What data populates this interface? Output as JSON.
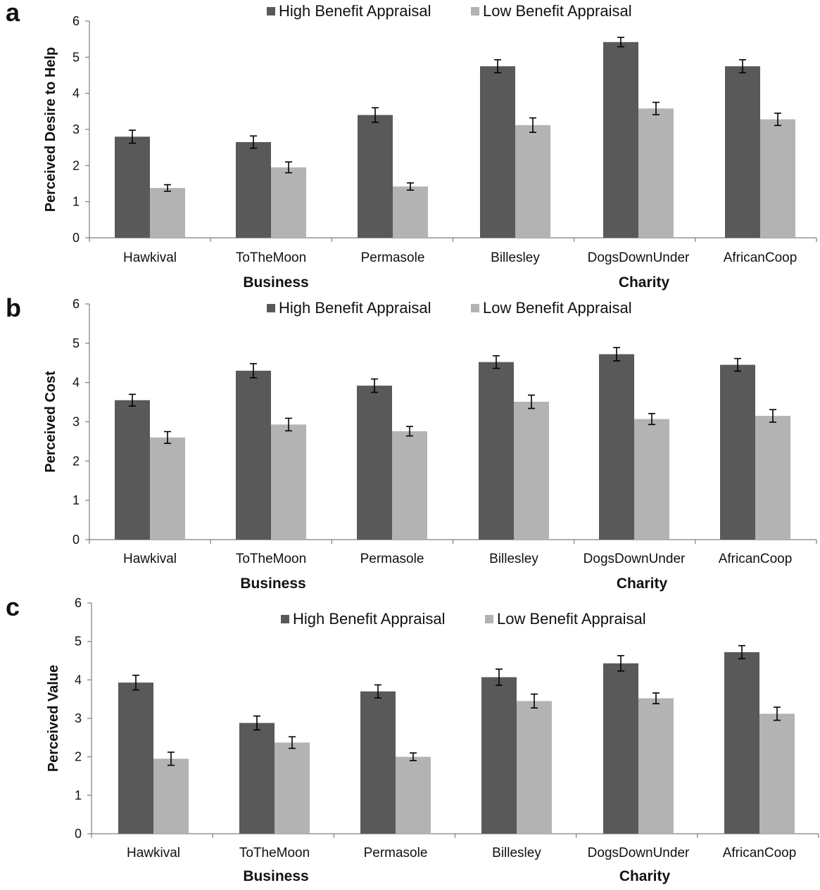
{
  "chart_data": [
    {
      "type": "bar",
      "panel_label": "a",
      "ylabel": "Perceived Desire to Help",
      "ylim": [
        0,
        6
      ],
      "yticks": [
        0,
        1,
        2,
        3,
        4,
        5,
        6
      ],
      "categories": [
        "Hawkival",
        "ToTheMoon",
        "Permasole",
        "Billesley",
        "DogsDownUnder",
        "AfricanCoop"
      ],
      "groups": [
        {
          "label": "Business",
          "categories": [
            "Hawkival",
            "ToTheMoon",
            "Permasole"
          ]
        },
        {
          "label": "Charity",
          "categories": [
            "Billesley",
            "DogsDownUnder",
            "AfricanCoop"
          ]
        }
      ],
      "legend_position": "top-center",
      "grid": false,
      "series": [
        {
          "name": "High Benefit Appraisal",
          "color": "#595959",
          "values": [
            2.8,
            2.65,
            3.4,
            4.75,
            5.42,
            4.75
          ],
          "errors": [
            0.18,
            0.17,
            0.2,
            0.18,
            0.13,
            0.18
          ]
        },
        {
          "name": "Low Benefit Appraisal",
          "color": "#b3b3b3",
          "values": [
            1.38,
            1.95,
            1.42,
            3.12,
            3.58,
            3.28
          ],
          "errors": [
            0.09,
            0.15,
            0.1,
            0.2,
            0.17,
            0.17
          ]
        }
      ]
    },
    {
      "type": "bar",
      "panel_label": "b",
      "ylabel": "Perceived Cost",
      "ylim": [
        0,
        6
      ],
      "yticks": [
        0,
        1,
        2,
        3,
        4,
        5,
        6
      ],
      "categories": [
        "Hawkival",
        "ToTheMoon",
        "Permasole",
        "Billesley",
        "DogsDownUnder",
        "AfricanCoop"
      ],
      "groups": [
        {
          "label": "Business",
          "categories": [
            "Hawkival",
            "ToTheMoon",
            "Permasole"
          ]
        },
        {
          "label": "Charity",
          "categories": [
            "Billesley",
            "DogsDownUnder",
            "AfricanCoop"
          ]
        }
      ],
      "legend_position": "top-center",
      "grid": false,
      "series": [
        {
          "name": "High Benefit Appraisal",
          "color": "#595959",
          "values": [
            3.55,
            4.3,
            3.92,
            4.52,
            4.72,
            4.45
          ],
          "errors": [
            0.15,
            0.18,
            0.17,
            0.16,
            0.17,
            0.16
          ]
        },
        {
          "name": "Low Benefit Appraisal",
          "color": "#b3b3b3",
          "values": [
            2.6,
            2.93,
            2.76,
            3.51,
            3.07,
            3.15
          ],
          "errors": [
            0.15,
            0.16,
            0.12,
            0.17,
            0.14,
            0.16
          ]
        }
      ]
    },
    {
      "type": "bar",
      "panel_label": "c",
      "ylabel": "Perceived Value",
      "ylim": [
        0,
        6
      ],
      "yticks": [
        0,
        1,
        2,
        3,
        4,
        5,
        6
      ],
      "categories": [
        "Hawkival",
        "ToTheMoon",
        "Permasole",
        "Billesley",
        "DogsDownUnder",
        "AfricanCoop"
      ],
      "groups": [
        {
          "label": "Business",
          "categories": [
            "Hawkival",
            "ToTheMoon",
            "Permasole"
          ]
        },
        {
          "label": "Charity",
          "categories": [
            "Billesley",
            "DogsDownUnder",
            "AfricanCoop"
          ]
        }
      ],
      "legend_position": "top-center",
      "grid": false,
      "series": [
        {
          "name": "High Benefit Appraisal",
          "color": "#595959",
          "values": [
            3.93,
            2.88,
            3.7,
            4.07,
            4.43,
            4.72
          ],
          "errors": [
            0.19,
            0.18,
            0.17,
            0.21,
            0.2,
            0.17
          ]
        },
        {
          "name": "Low Benefit Appraisal",
          "color": "#b3b3b3",
          "values": [
            1.95,
            2.37,
            2.0,
            3.45,
            3.52,
            3.12
          ],
          "errors": [
            0.17,
            0.15,
            0.1,
            0.18,
            0.14,
            0.17
          ]
        }
      ]
    }
  ]
}
